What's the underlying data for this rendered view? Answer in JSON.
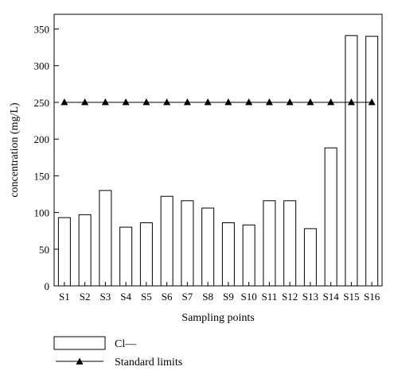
{
  "chart_data": {
    "type": "bar",
    "title": "",
    "xlabel": "Sampling points",
    "ylabel": "concentration (mg/L)",
    "ylim": [
      0,
      370
    ],
    "yticks": [
      0,
      50,
      100,
      150,
      200,
      250,
      300,
      350
    ],
    "grid": false,
    "legend_position": "bottom-left",
    "categories": [
      "S1",
      "S2",
      "S3",
      "S4",
      "S5",
      "S6",
      "S7",
      "S8",
      "S9",
      "S10",
      "S11",
      "S12",
      "S13",
      "S14",
      "S15",
      "S16"
    ],
    "series": [
      {
        "name": "Cl—",
        "type": "bar",
        "values": [
          93,
          97,
          130,
          80,
          86,
          122,
          116,
          106,
          86,
          83,
          116,
          116,
          78,
          188,
          341,
          340
        ],
        "fill": "#ffffff",
        "stroke": "#000000"
      },
      {
        "name": "Standard limits",
        "type": "line",
        "marker": "triangle",
        "values": [
          250,
          250,
          250,
          250,
          250,
          250,
          250,
          250,
          250,
          250,
          250,
          250,
          250,
          250,
          250,
          250
        ],
        "color": "#000000"
      }
    ]
  }
}
